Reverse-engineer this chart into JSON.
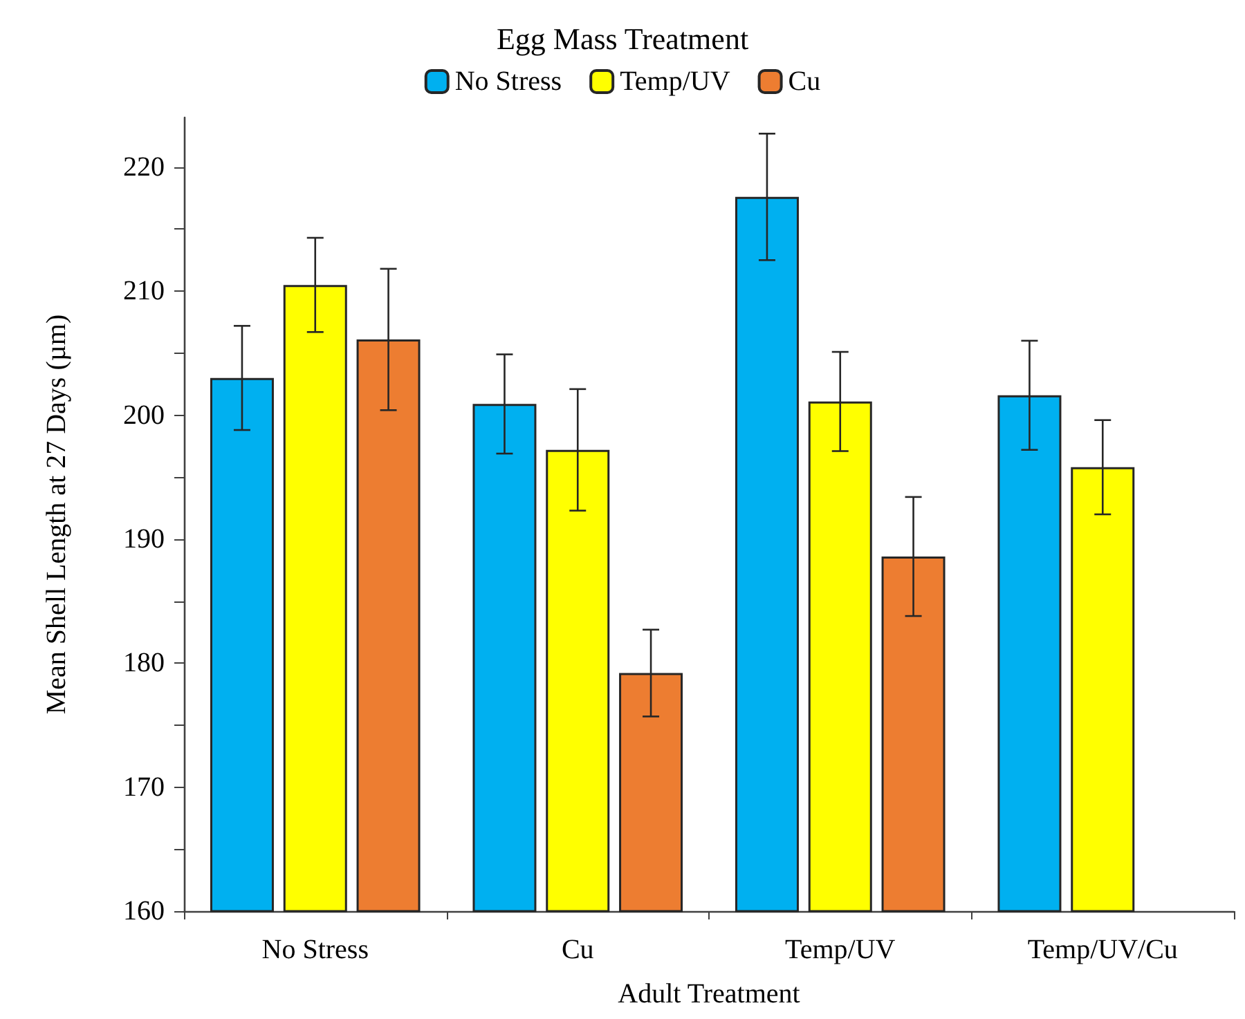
{
  "chart_data": {
    "type": "bar",
    "legend_title": "Egg Mass Treatment",
    "xlabel": "Adult Treatment",
    "ylabel": "Mean Shell Length at 27 Days (µm)",
    "categories": [
      "No Stress",
      "Cu",
      "Temp/UV",
      "Temp/UV/Cu"
    ],
    "series": [
      {
        "name": "No Stress",
        "color": "#00b0f0",
        "values": [
          203.0,
          200.9,
          217.6,
          201.6
        ],
        "errors": [
          4.2,
          4.0,
          5.1,
          4.4
        ]
      },
      {
        "name": "Temp/UV",
        "color": "#ffff00",
        "values": [
          210.5,
          197.2,
          201.1,
          195.8
        ],
        "errors": [
          3.8,
          4.9,
          4.0,
          3.8
        ]
      },
      {
        "name": "Cu",
        "color": "#ed7d31",
        "values": [
          206.1,
          179.2,
          188.6,
          null
        ],
        "errors": [
          5.7,
          3.5,
          4.8,
          null
        ]
      }
    ],
    "ylim": [
      160,
      224
    ],
    "yticks": [
      160,
      {
        "value": 165,
        "label": null
      },
      170,
      {
        "value": 175,
        "label": null
      },
      180,
      {
        "value": 185,
        "label": null
      },
      190,
      {
        "value": 195,
        "label": null
      },
      200,
      {
        "value": 205,
        "label": null
      },
      210,
      {
        "value": 215,
        "label": null
      },
      220
    ],
    "grid": false,
    "legend": "top"
  }
}
